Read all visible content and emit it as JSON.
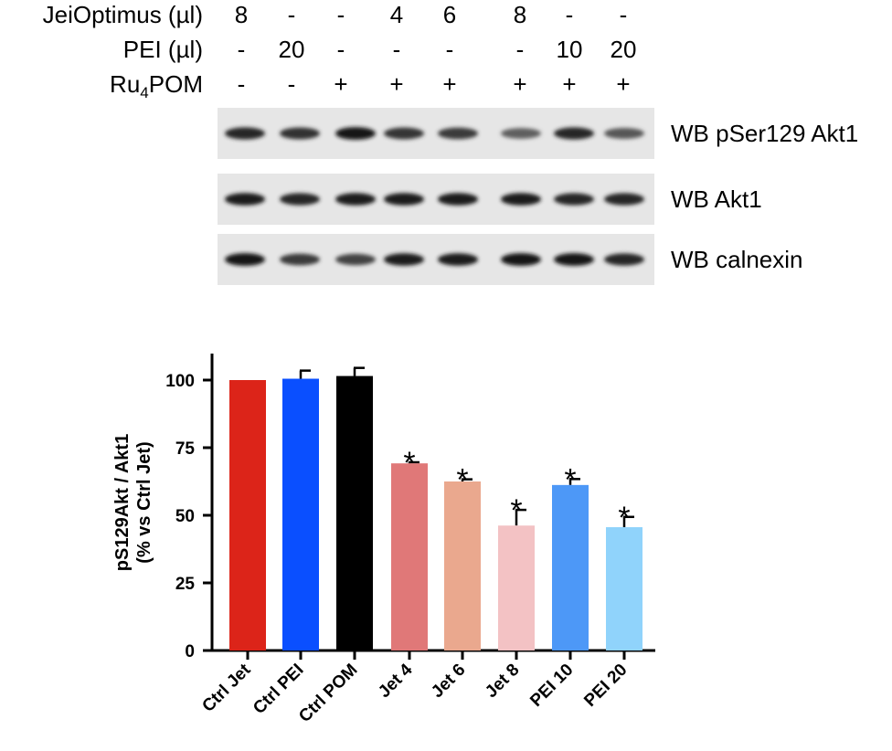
{
  "treatment_table": {
    "rows": [
      {
        "label": "JeiOptimus (µl)",
        "values": [
          "8",
          "-",
          "-",
          "4",
          "6",
          "8",
          "-",
          "-"
        ]
      },
      {
        "label": "PEI (µl)",
        "values": [
          "-",
          "20",
          "-",
          "-",
          "-",
          "-",
          "10",
          "20"
        ]
      },
      {
        "label_main": "Ru",
        "label_sub": "4",
        "label_tail": "POM",
        "values": [
          "-",
          "-",
          "+",
          "+",
          "+",
          "+",
          "+",
          "+"
        ]
      }
    ]
  },
  "blots": [
    {
      "label": "WB pSer129 Akt1",
      "intensities": [
        0.85,
        0.8,
        0.95,
        0.78,
        0.75,
        0.55,
        0.85,
        0.6
      ]
    },
    {
      "label": "WB Akt1",
      "intensities": [
        0.9,
        0.85,
        0.9,
        0.9,
        0.9,
        0.9,
        0.85,
        0.85
      ]
    },
    {
      "label": "WB calnexin",
      "intensities": [
        0.95,
        0.75,
        0.7,
        0.9,
        0.9,
        0.95,
        0.95,
        0.85
      ]
    }
  ],
  "chart_data": {
    "type": "bar",
    "categories": [
      "Ctrl Jet",
      "Ctrl PEI",
      "Ctrl POM",
      "Jet 4",
      "Jet 6",
      "Jet 8",
      "PEI 10",
      "PEI 20"
    ],
    "values": [
      100,
      100.5,
      101.5,
      69.2,
      62.5,
      46.2,
      61.2,
      45.6
    ],
    "errors": [
      0,
      3,
      3,
      0.4,
      0.8,
      5.8,
      2.2,
      3.8
    ],
    "significance": [
      "",
      "",
      "",
      "*",
      "*",
      "*",
      "*",
      "*"
    ],
    "colors": [
      "#dc2419",
      "#0a4fff",
      "#000000",
      "#e07878",
      "#eaa88e",
      "#f3c2c4",
      "#4d98f7",
      "#90d3fb"
    ],
    "ylabel_line1": "pS129Akt / Akt1",
    "ylabel_line2": "(% vs Ctrl Jet)",
    "ylim": [
      0,
      110
    ],
    "yticks": [
      "0",
      "25",
      "50",
      "75",
      "100"
    ],
    "ytick_values": [
      0,
      25,
      50,
      75,
      100
    ]
  }
}
